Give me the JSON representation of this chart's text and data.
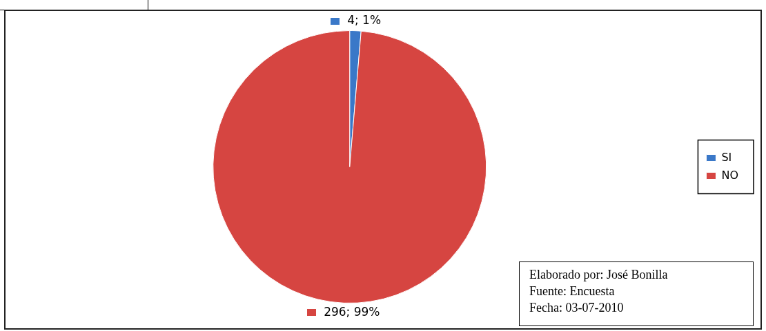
{
  "chart_data": {
    "type": "pie",
    "categories": [
      "SI",
      "NO"
    ],
    "values": [
      4,
      296
    ],
    "colors": [
      "#3a78c8",
      "#d64541"
    ],
    "value_labels": [
      "4; 1%",
      "296; 99%"
    ],
    "legend": "right",
    "annotations": [
      "Elaborado por: José Bonilla",
      "Fuente: Encuesta",
      "Fecha: 03-07-2010"
    ]
  }
}
